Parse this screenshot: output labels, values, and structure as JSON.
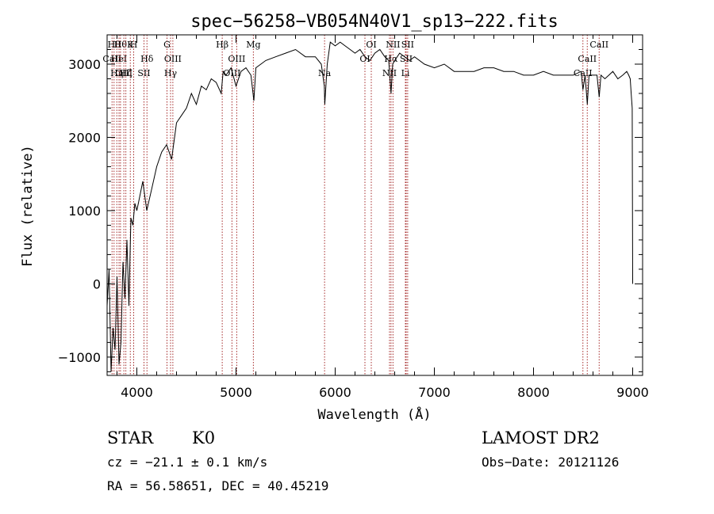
{
  "chart_data": {
    "type": "line",
    "title": "spec−56258−VB054N40V1_sp13−222.fits",
    "xlabel": "Wavelength (Å)",
    "ylabel": "Flux (relative)",
    "xlim": [
      3700,
      9100
    ],
    "ylim": [
      -1250,
      3400
    ],
    "xticks": [
      4000,
      5000,
      6000,
      7000,
      8000,
      9000
    ],
    "xtick_labels": [
      "4000",
      "5000",
      "6000",
      "7000",
      "8000",
      "9000"
    ],
    "yticks": [
      -1000,
      0,
      1000,
      2000,
      3000
    ],
    "ytick_labels": [
      "−1000",
      "0",
      "1000",
      "2000",
      "3000"
    ],
    "grid": false,
    "series": [
      {
        "x": [
          3700,
          3720,
          3740,
          3760,
          3780,
          3800,
          3820,
          3840,
          3860,
          3880,
          3900,
          3920,
          3940,
          3960,
          3980,
          4000,
          4030,
          4060,
          4100,
          4150,
          4200,
          4250,
          4300,
          4350,
          4400,
          4450,
          4500,
          4550,
          4600,
          4650,
          4700,
          4750,
          4800,
          4850,
          4870,
          4900,
          4950,
          5000,
          5050,
          5100,
          5150,
          5180,
          5200,
          5250,
          5300,
          5400,
          5500,
          5600,
          5700,
          5800,
          5860,
          5890,
          5895,
          5920,
          5950,
          6000,
          6050,
          6100,
          6150,
          6200,
          6250,
          6300,
          6350,
          6400,
          6450,
          6500,
          6540,
          6563,
          6580,
          6600,
          6650,
          6700,
          6750,
          6800,
          6900,
          7000,
          7100,
          7200,
          7300,
          7400,
          7500,
          7600,
          7700,
          7800,
          7900,
          8000,
          8100,
          8200,
          8300,
          8400,
          8480,
          8498,
          8520,
          8542,
          8560,
          8600,
          8640,
          8662,
          8680,
          8720,
          8760,
          8800,
          8850,
          8900,
          8940,
          8960,
          8975,
          8985,
          8995,
          9000
        ],
        "y": [
          -300,
          200,
          -1200,
          -600,
          -900,
          100,
          -1100,
          -800,
          300,
          -200,
          600,
          -300,
          900,
          800,
          1100,
          1000,
          1200,
          1400,
          1000,
          1300,
          1600,
          1800,
          1900,
          1700,
          2200,
          2300,
          2400,
          2600,
          2450,
          2700,
          2650,
          2800,
          2750,
          2600,
          2900,
          2850,
          2950,
          2700,
          2900,
          2950,
          2850,
          2500,
          2950,
          3000,
          3050,
          3100,
          3150,
          3200,
          3100,
          3100,
          3000,
          2700,
          2450,
          3000,
          3300,
          3250,
          3300,
          3250,
          3200,
          3150,
          3200,
          3100,
          3050,
          3150,
          3200,
          3100,
          3050,
          2600,
          3000,
          3050,
          3150,
          3100,
          3050,
          3100,
          3000,
          2950,
          3000,
          2900,
          2900,
          2900,
          2950,
          2950,
          2900,
          2900,
          2850,
          2850,
          2900,
          2850,
          2850,
          2850,
          2900,
          2650,
          2850,
          2450,
          2850,
          2850,
          2850,
          2550,
          2850,
          2800,
          2850,
          2900,
          2800,
          2850,
          2900,
          2850,
          2800,
          2600,
          2400,
          0
        ]
      }
    ],
    "line_markers": [
      {
        "wavelength": 3750,
        "label": "CaII",
        "row": 1
      },
      {
        "wavelength": 3770,
        "label": "Hθ",
        "row": 0
      },
      {
        "wavelength": 3798,
        "label": "Hη",
        "row": 2
      },
      {
        "wavelength": 3820,
        "label": "HeI",
        "row": 1
      },
      {
        "wavelength": 3835,
        "label": "Hθ",
        "row": 0
      },
      {
        "wavelength": 3869,
        "label": "OIII",
        "row": 2
      },
      {
        "wavelength": 3889,
        "label": "Hζ",
        "row": 2
      },
      {
        "wavelength": 3934,
        "label": "K",
        "row": 0
      },
      {
        "wavelength": 3968,
        "label": "H",
        "row": 0
      },
      {
        "wavelength": 4072,
        "label": "SII",
        "row": 2
      },
      {
        "wavelength": 4102,
        "label": "Hδ",
        "row": 1
      },
      {
        "wavelength": 4304,
        "label": "G",
        "row": 0
      },
      {
        "wavelength": 4340,
        "label": "Hγ",
        "row": 2
      },
      {
        "wavelength": 4363,
        "label": "OIII",
        "row": 1
      },
      {
        "wavelength": 4861,
        "label": "Hβ",
        "row": 0
      },
      {
        "wavelength": 4959,
        "label": "OIII",
        "row": 2
      },
      {
        "wavelength": 5007,
        "label": "OIII",
        "row": 1
      },
      {
        "wavelength": 5175,
        "label": "Mg",
        "row": 0
      },
      {
        "wavelength": 5893,
        "label": "Na",
        "row": 2
      },
      {
        "wavelength": 6300,
        "label": "OI",
        "row": 1
      },
      {
        "wavelength": 6364,
        "label": "OI",
        "row": 0
      },
      {
        "wavelength": 6548,
        "label": "NII",
        "row": 2
      },
      {
        "wavelength": 6563,
        "label": "Hα",
        "row": 1
      },
      {
        "wavelength": 6583,
        "label": "NII",
        "row": 0
      },
      {
        "wavelength": 6708,
        "label": "Li",
        "row": 2
      },
      {
        "wavelength": 6716,
        "label": "SII",
        "row": 1
      },
      {
        "wavelength": 6731,
        "label": "SII",
        "row": 0
      },
      {
        "wavelength": 8498,
        "label": "CaII",
        "row": 2
      },
      {
        "wavelength": 8542,
        "label": "CaII",
        "row": 1
      },
      {
        "wavelength": 8662,
        "label": "CaII",
        "row": 0
      }
    ]
  },
  "info": {
    "object_class": "STAR",
    "subclass": "K0",
    "survey": "LAMOST DR2",
    "redshift": "cz = −21.1 ± 0.1 km/s",
    "obs_date": "Obs−Date: 20121126",
    "coords": "RA =  56.58651, DEC =  40.45219"
  },
  "colors": {
    "line": "#000000",
    "marker": "#a52a2a"
  }
}
